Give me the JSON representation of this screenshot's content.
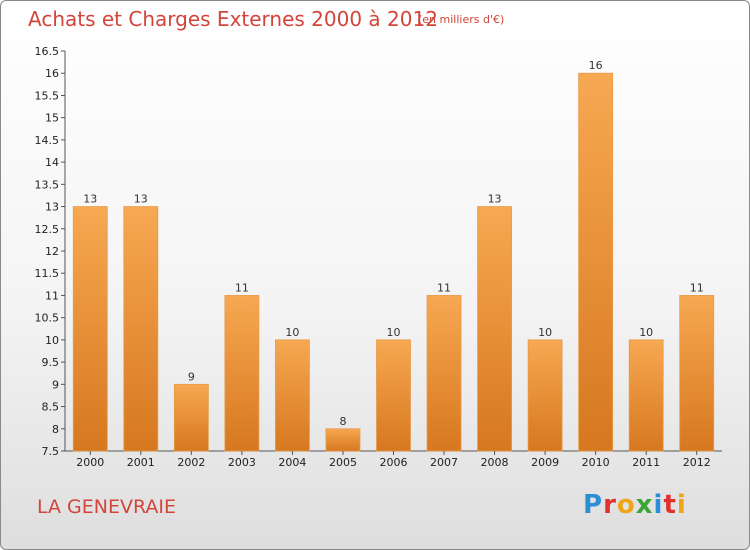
{
  "title": "Achats et Charges Externes 2000 à 2012",
  "subtitle": "(en milliers d'€)",
  "place": "LA GENEVRAIE",
  "logo": {
    "letters": [
      "P",
      "r",
      "o",
      "x",
      "i",
      "t",
      "i"
    ],
    "colors": [
      "#2a8fd6",
      "#e0312f",
      "#f0a419",
      "#3aa535",
      "#2a8fd6",
      "#e0312f",
      "#f0a419"
    ]
  },
  "colors": {
    "bar_top": "#f7a852",
    "bar_bottom": "#d6781f",
    "title": "#d2453b"
  },
  "chart_data": {
    "type": "bar",
    "categories": [
      "2000",
      "2001",
      "2002",
      "2003",
      "2004",
      "2005",
      "2006",
      "2007",
      "2008",
      "2009",
      "2010",
      "2011",
      "2012"
    ],
    "values": [
      13,
      13,
      9,
      11,
      10,
      8,
      10,
      11,
      13,
      10,
      16,
      10,
      11
    ],
    "title": "Achats et Charges Externes 2000 à 2012",
    "ylim": [
      7.5,
      16.5
    ],
    "yticks": [
      "7.5",
      "8",
      "8.5",
      "9",
      "9.5",
      "10",
      "10.5",
      "11",
      "11.5",
      "12",
      "12.5",
      "13",
      "13.5",
      "14",
      "14.5",
      "15",
      "15.5",
      "16",
      "16.5"
    ],
    "grid": false
  }
}
